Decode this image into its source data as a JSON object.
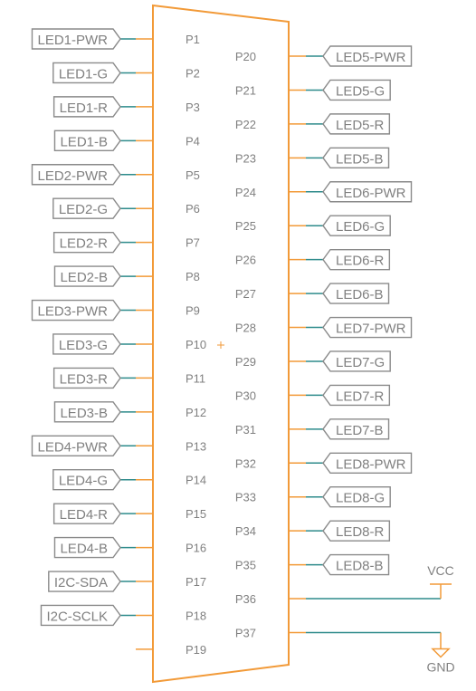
{
  "colors": {
    "body": "#f29a38",
    "pin": "#f29a38",
    "wire": "#2e8b8b",
    "label_border": "#8a8a8a",
    "text": "#808080",
    "background": "#ffffff"
  },
  "left_pins": [
    {
      "pin": "P1",
      "net": "LED1-PWR"
    },
    {
      "pin": "P2",
      "net": "LED1-G"
    },
    {
      "pin": "P3",
      "net": "LED1-R"
    },
    {
      "pin": "P4",
      "net": "LED1-B"
    },
    {
      "pin": "P5",
      "net": "LED2-PWR"
    },
    {
      "pin": "P6",
      "net": "LED2-G"
    },
    {
      "pin": "P7",
      "net": "LED2-R"
    },
    {
      "pin": "P8",
      "net": "LED2-B"
    },
    {
      "pin": "P9",
      "net": "LED3-PWR"
    },
    {
      "pin": "P10",
      "net": "LED3-G"
    },
    {
      "pin": "P11",
      "net": "LED3-R"
    },
    {
      "pin": "P12",
      "net": "LED3-B"
    },
    {
      "pin": "P13",
      "net": "LED4-PWR"
    },
    {
      "pin": "P14",
      "net": "LED4-G"
    },
    {
      "pin": "P15",
      "net": "LED4-R"
    },
    {
      "pin": "P16",
      "net": "LED4-B"
    },
    {
      "pin": "P17",
      "net": "I2C-SDA"
    },
    {
      "pin": "P18",
      "net": "I2C-SCLK"
    },
    {
      "pin": "P19",
      "net": ""
    }
  ],
  "right_pins": [
    {
      "pin": "P20",
      "net": "LED5-PWR"
    },
    {
      "pin": "P21",
      "net": "LED5-G"
    },
    {
      "pin": "P22",
      "net": "LED5-R"
    },
    {
      "pin": "P23",
      "net": "LED5-B"
    },
    {
      "pin": "P24",
      "net": "LED6-PWR"
    },
    {
      "pin": "P25",
      "net": "LED6-G"
    },
    {
      "pin": "P26",
      "net": "LED6-R"
    },
    {
      "pin": "P27",
      "net": "LED6-B"
    },
    {
      "pin": "P28",
      "net": "LED7-PWR"
    },
    {
      "pin": "P29",
      "net": "LED7-G"
    },
    {
      "pin": "P30",
      "net": "LED7-R"
    },
    {
      "pin": "P31",
      "net": "LED7-B"
    },
    {
      "pin": "P32",
      "net": "LED8-PWR"
    },
    {
      "pin": "P33",
      "net": "LED8-G"
    },
    {
      "pin": "P34",
      "net": "LED8-R"
    },
    {
      "pin": "P35",
      "net": "LED8-B"
    },
    {
      "pin": "P36",
      "net": "",
      "power": "VCC"
    },
    {
      "pin": "P37",
      "net": "",
      "power": "GND"
    }
  ],
  "power": {
    "vcc_label": "VCC",
    "gnd_label": "GND"
  }
}
